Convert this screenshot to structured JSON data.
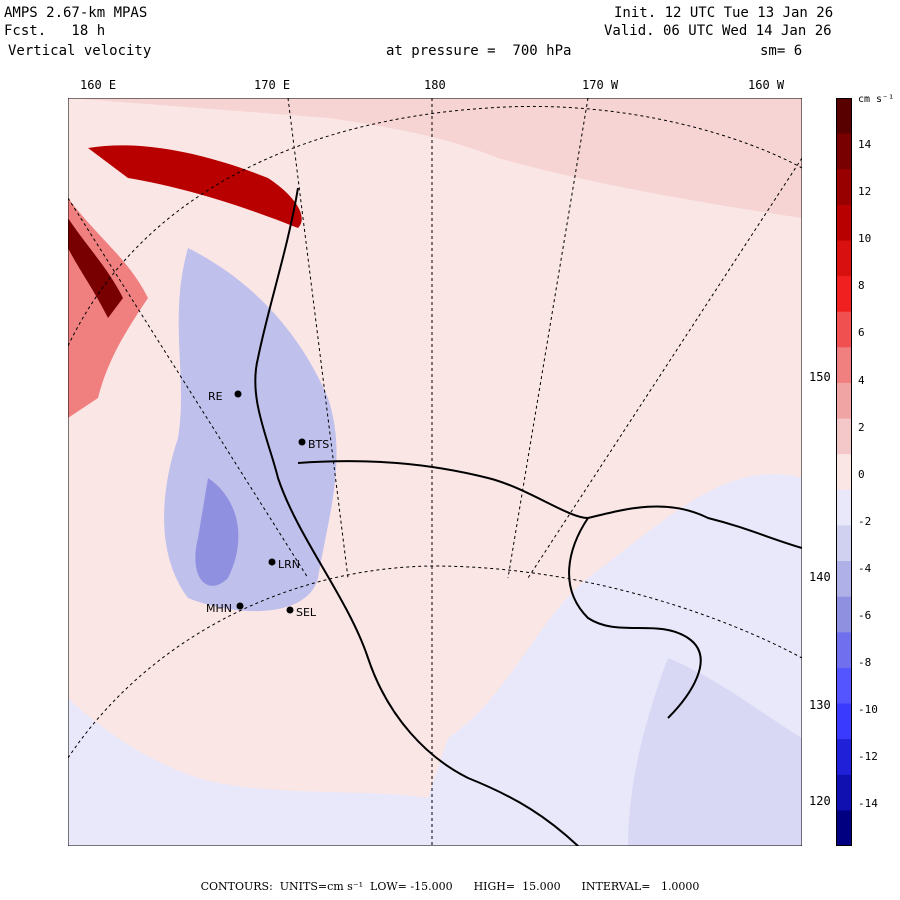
{
  "header": {
    "model": "AMPS 2.67-km MPAS",
    "forecast": "Fcst.   18 h",
    "field": "Vertical velocity",
    "init": "Init. 12 UTC Tue 13 Jan 26",
    "valid": "Valid. 06 UTC Wed 14 Jan 26",
    "level": "at pressure =  700 hPa",
    "smooth": "sm= 6"
  },
  "lon_labels": [
    "160 E",
    "170 E",
    "180",
    "170 W",
    "160 W"
  ],
  "lat_labels": [
    "150 W",
    "140 W",
    "130 W",
    "120 W"
  ],
  "colorbar": {
    "units": "cm s⁻¹",
    "ticks": [
      "14",
      "12",
      "10",
      "8",
      "6",
      "4",
      "2",
      "0",
      "-2",
      "-4",
      "-6",
      "-8",
      "-10",
      "-12",
      "-14"
    ],
    "colors": [
      "#000080",
      "#1010b0",
      "#2020d8",
      "#3a3aff",
      "#5555ff",
      "#7070ee",
      "#9090e0",
      "#b0b0e8",
      "#d0d0f0",
      "#e8e8fa",
      "#fbe6e6",
      "#f4c8c8",
      "#f0a4a4",
      "#f08080",
      "#f05050",
      "#f02020",
      "#d81010",
      "#b80000",
      "#980000",
      "#780000",
      "#580000"
    ]
  },
  "stations": [
    "BTS",
    "LRN",
    "SEL",
    "MHN",
    "RE"
  ],
  "map_colors": {
    "background": "#fbe6e6",
    "lightblue": "#e8e8fa",
    "blue": "#9090e0",
    "red": "#f0a4a4",
    "darkred": "#780000"
  },
  "footer": {
    "text": "CONTOURS:  UNITS=cm s⁻¹  LOW= -15.000      HIGH=  15.000      INTERVAL=   1.0000"
  }
}
